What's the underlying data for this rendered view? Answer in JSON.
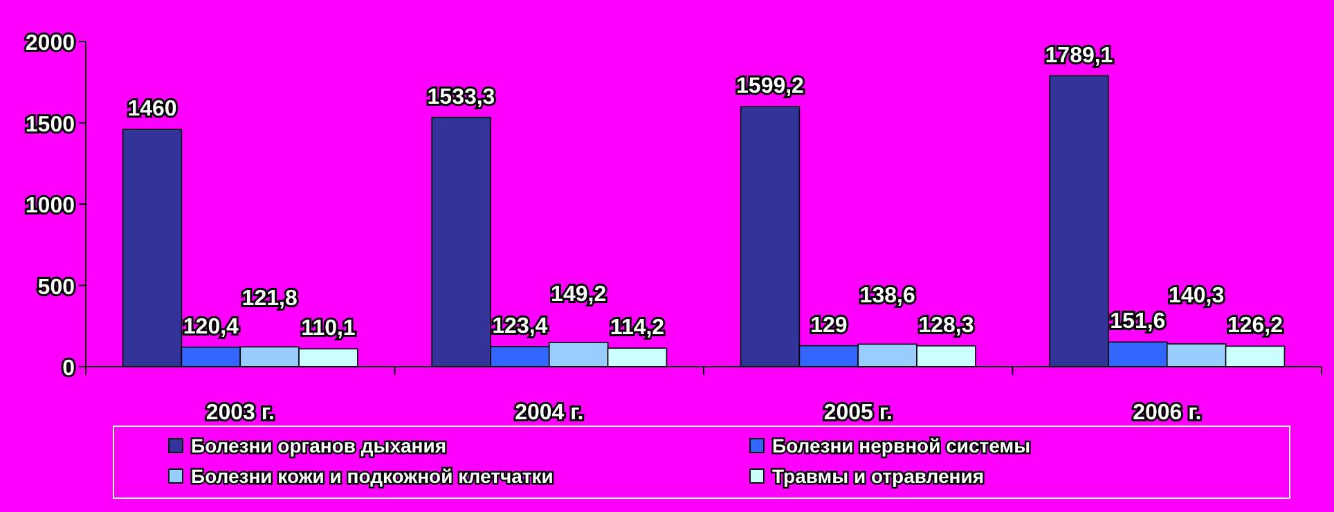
{
  "chart_data": {
    "type": "bar",
    "categories": [
      "2003 г.",
      "2004 г.",
      "2005 г.",
      "2006 г."
    ],
    "series": [
      {
        "name": "Болезни органов дыхания",
        "color": "#333399",
        "values": [
          1460,
          1533.3,
          1599.2,
          1789.1
        ],
        "value_labels": [
          "1460",
          "1533,3",
          "1599,2",
          "1789,1"
        ]
      },
      {
        "name": "Болезни нервной системы",
        "color": "#3366ff",
        "values": [
          120.4,
          123.4,
          129,
          151.6
        ],
        "value_labels": [
          "120,4",
          "123,4",
          "129",
          "151,6"
        ]
      },
      {
        "name": "Болезни кожи и подкожной клетчатки",
        "color": "#99ccff",
        "values": [
          121.8,
          149.2,
          138.6,
          140.3
        ],
        "value_labels": [
          "121,8",
          "149,2",
          "138,6",
          "140,3"
        ]
      },
      {
        "name": "Травмы и отравления",
        "color": "#ccffff",
        "values": [
          110.1,
          114.2,
          128.3,
          126.2
        ],
        "value_labels": [
          "110,1",
          "114,2",
          "128,3",
          "126,2"
        ]
      }
    ],
    "ylim": [
      0,
      2000
    ],
    "yticks": [
      0,
      500,
      1000,
      1500,
      2000
    ],
    "grid": false,
    "legend": "bottom"
  }
}
